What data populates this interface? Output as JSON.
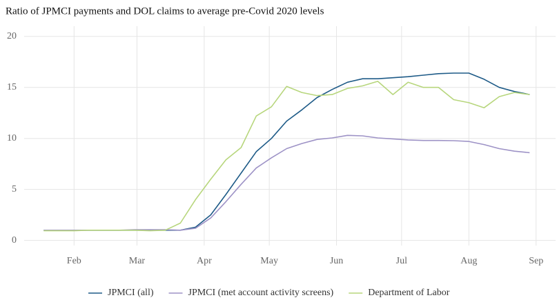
{
  "chart_data": {
    "type": "line",
    "title": "Ratio of JPMCI payments and DOL claims to average pre-Covid 2020 levels",
    "x": [
      18,
      25,
      32,
      39,
      46,
      53,
      60,
      67,
      74,
      81,
      88,
      95,
      102,
      109,
      116,
      123,
      130,
      137,
      144,
      151,
      158,
      165,
      172,
      179,
      186,
      193,
      200,
      207,
      214,
      221,
      228,
      235,
      242
    ],
    "series": [
      {
        "name": "JPMCI (all)",
        "color": "#1d5a87",
        "values": [
          1.0,
          1.0,
          1.0,
          1.0,
          1.0,
          1.0,
          1.0,
          1.0,
          1.0,
          1.0,
          1.3,
          2.5,
          4.5,
          6.6,
          8.7,
          10.0,
          11.7,
          12.8,
          14.0,
          14.8,
          15.5,
          15.85,
          15.85,
          15.95,
          16.05,
          16.2,
          16.35,
          16.4,
          16.4,
          15.8,
          15.0,
          14.6,
          14.3
        ]
      },
      {
        "name": "JPMCI (met account activity screens)",
        "color": "#9d92c6",
        "values": [
          1.0,
          1.0,
          1.0,
          1.0,
          1.0,
          1.0,
          1.05,
          1.05,
          1.05,
          1.0,
          1.2,
          2.2,
          3.8,
          5.5,
          7.1,
          8.1,
          9.0,
          9.5,
          9.9,
          10.05,
          10.3,
          10.25,
          10.05,
          9.95,
          9.85,
          9.8,
          9.8,
          9.78,
          9.7,
          9.4,
          9.0,
          8.75,
          8.6
        ]
      },
      {
        "name": "Department of Labor",
        "color": "#b7d67c",
        "values": [
          0.95,
          0.95,
          0.95,
          1.0,
          1.0,
          1.0,
          1.0,
          0.95,
          1.0,
          1.7,
          4.0,
          6.0,
          7.9,
          9.1,
          12.2,
          13.1,
          15.1,
          14.5,
          14.2,
          14.3,
          14.9,
          15.15,
          15.6,
          14.3,
          15.5,
          15.0,
          15.0,
          13.8,
          13.5,
          13.0,
          14.1,
          14.5,
          14.3
        ]
      }
    ],
    "xlim": [
      9,
      254
    ],
    "xticks": [
      {
        "value": 32,
        "label": "Feb"
      },
      {
        "value": 61,
        "label": "Mar"
      },
      {
        "value": 92,
        "label": "Apr"
      },
      {
        "value": 122,
        "label": "May"
      },
      {
        "value": 153,
        "label": "Jun"
      },
      {
        "value": 183,
        "label": "Jul"
      },
      {
        "value": 214,
        "label": "Aug"
      },
      {
        "value": 245,
        "label": "Sep"
      }
    ],
    "ylim": [
      -0.5,
      21
    ],
    "yticks": [
      0,
      5,
      10,
      15,
      20
    ],
    "grid": true,
    "legend": "bottom"
  }
}
